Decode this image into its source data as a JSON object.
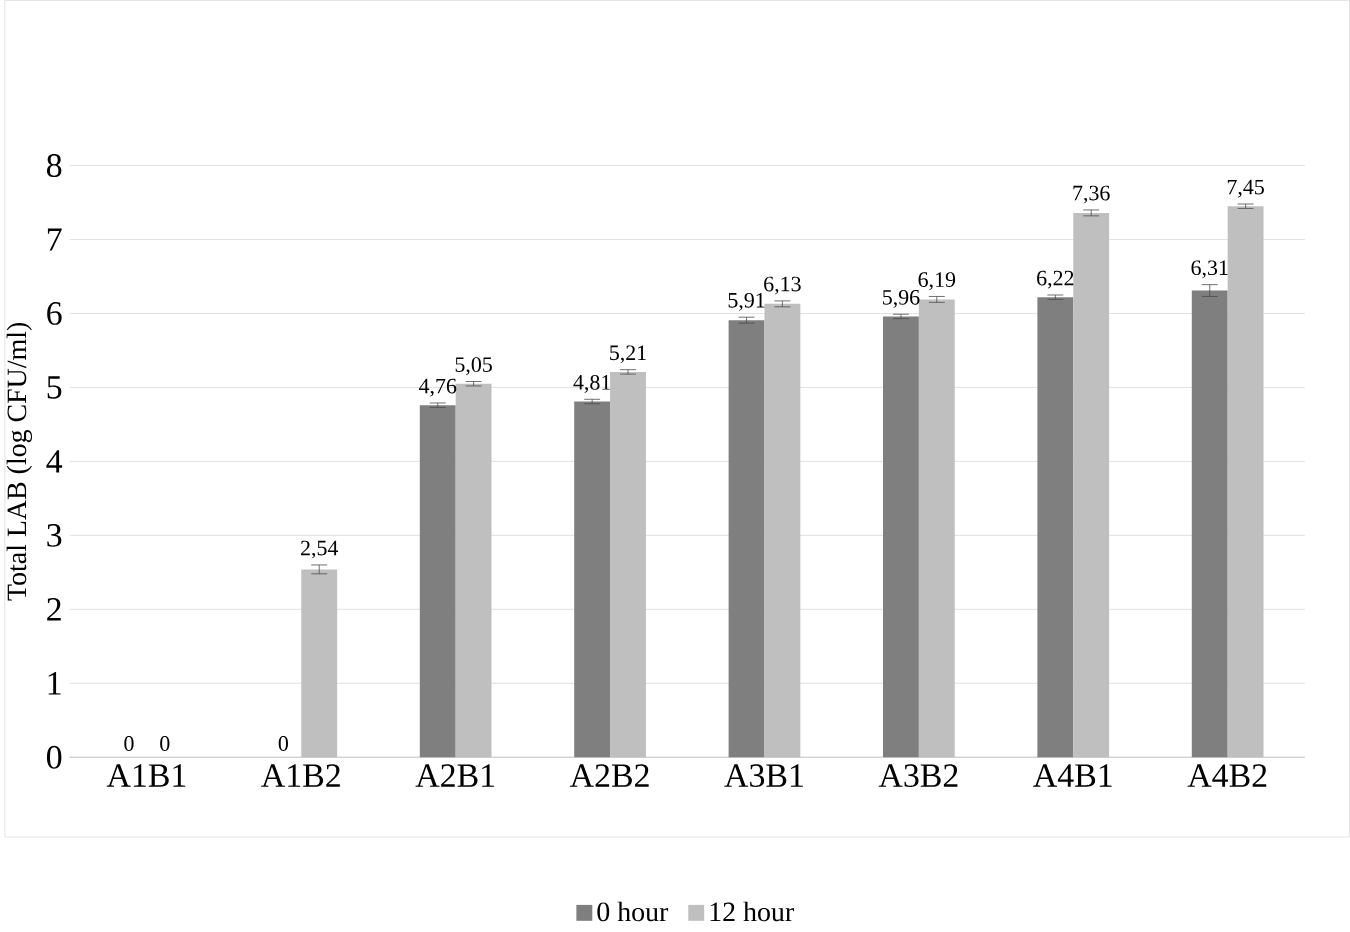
{
  "chart_data": {
    "type": "bar",
    "ylabel": "Total LAB (log CFU/ml)",
    "categories": [
      "A1B1",
      "A1B2",
      "A2B1",
      "A2B2",
      "A3B1",
      "A3B2",
      "A4B1",
      "A4B2"
    ],
    "series": [
      {
        "name": "0 hour",
        "color": "#7f7f7f",
        "values": [
          0,
          0,
          4.76,
          4.81,
          5.91,
          5.96,
          6.22,
          6.31
        ],
        "errors": [
          null,
          null,
          0.03,
          0.03,
          0.04,
          0.03,
          0.03,
          0.08
        ],
        "value_labels": [
          "0",
          "0",
          "4,76",
          "4,81",
          "5,91",
          "5,96",
          "6,22",
          "6,31"
        ]
      },
      {
        "name": "12 hour",
        "color": "#bfbfbf",
        "values": [
          0,
          2.54,
          5.05,
          5.21,
          6.13,
          6.19,
          7.36,
          7.45
        ],
        "errors": [
          null,
          0.06,
          0.03,
          0.03,
          0.04,
          0.04,
          0.04,
          0.03
        ],
        "value_labels": [
          "0",
          "2,54",
          "5,05",
          "5,21",
          "6,13",
          "6,19",
          "7,36",
          "7,45"
        ]
      }
    ],
    "ylim": [
      0,
      8
    ],
    "yticks": [
      0,
      1,
      2,
      3,
      4,
      5,
      6,
      7,
      8
    ],
    "grid": "y",
    "legend": "bottom"
  }
}
